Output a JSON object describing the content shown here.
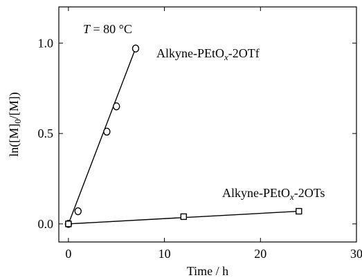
{
  "chart_data": {
    "type": "scatter",
    "annotation": {
      "var": "T",
      "rest": " = 80 °C"
    },
    "xlabel": "Time / h",
    "ylabel": {
      "pre": "ln([M]",
      "sub": "0",
      "post": "/[M])"
    },
    "xlim": [
      -1,
      30
    ],
    "ylim": [
      -0.1,
      1.2
    ],
    "xticks": [
      0,
      10,
      20,
      30
    ],
    "xtick_labels": [
      "0",
      "10",
      "20",
      "30"
    ],
    "yticks": [
      0.0,
      0.5,
      1.0
    ],
    "ytick_labels": [
      "0.0",
      "0.5",
      "1.0"
    ],
    "grid": false,
    "series": [
      {
        "name": "Alkyne-PEtOx-2OTf",
        "label": {
          "pre": "Alkyne-PEtO",
          "ital": "x",
          "post": "-2OTf"
        },
        "marker": "circle",
        "x": [
          0,
          1,
          4,
          5,
          7
        ],
        "y": [
          0.0,
          0.07,
          0.51,
          0.65,
          0.97
        ],
        "fit": {
          "x": [
            0,
            7
          ],
          "y": [
            0.0,
            0.972
          ]
        }
      },
      {
        "name": "Alkyne-PEtOx-2OTs",
        "label": {
          "pre": "Alkyne-PEtO",
          "ital": "x",
          "post": "-2OTs"
        },
        "marker": "square",
        "x": [
          0,
          12,
          24
        ],
        "y": [
          0.0,
          0.04,
          0.07
        ],
        "fit": {
          "x": [
            0,
            24
          ],
          "y": [
            0.0,
            0.07
          ]
        }
      }
    ]
  }
}
